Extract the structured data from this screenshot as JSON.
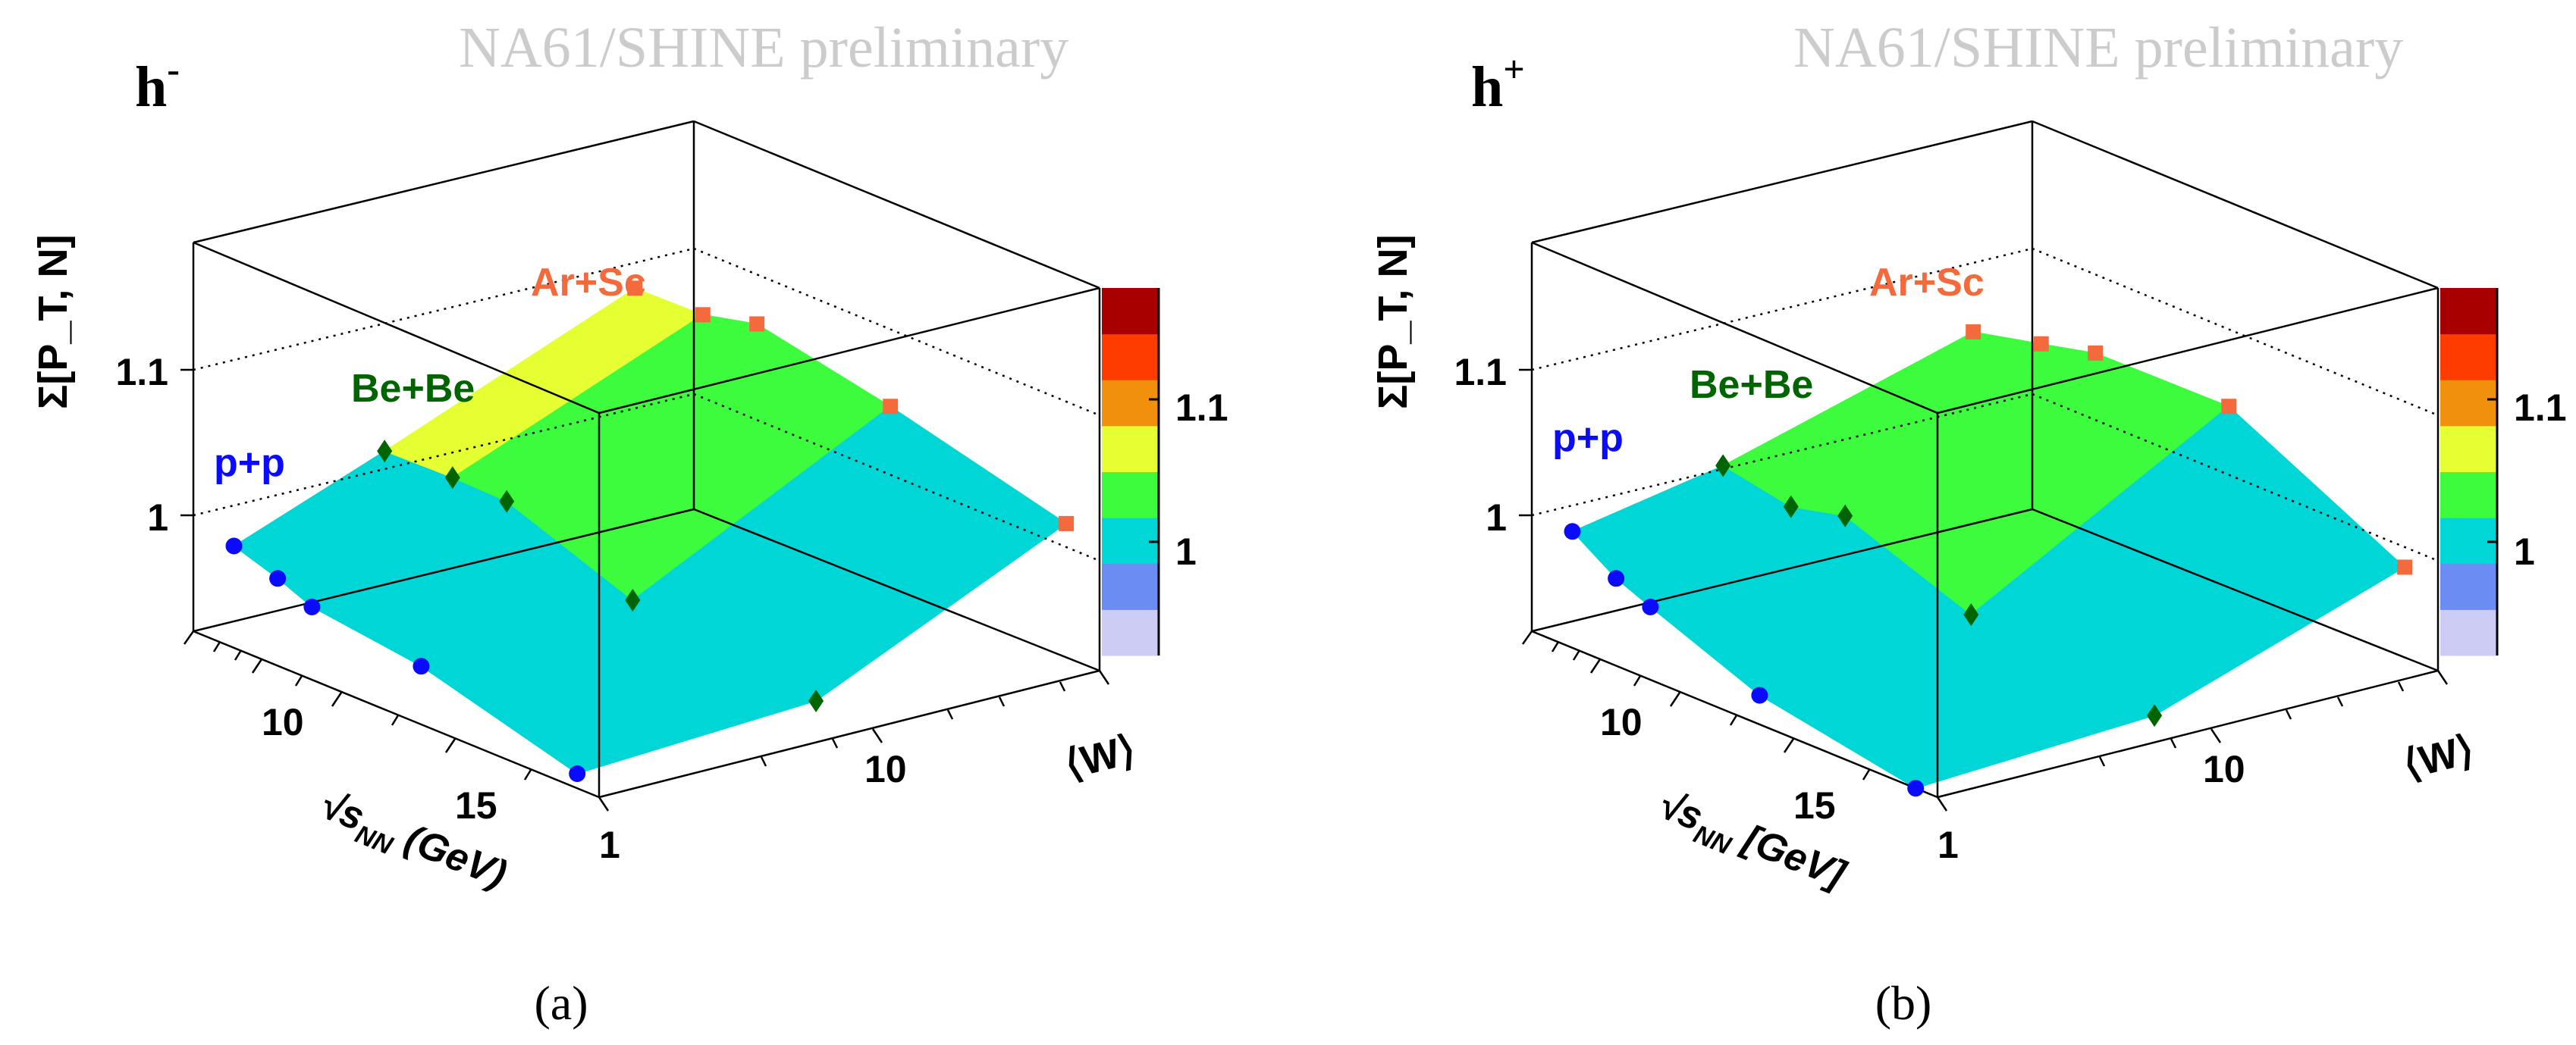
{
  "chart_data": [
    {
      "type": "surface3d",
      "panel_label": "(a)",
      "particle": "h",
      "charge": "-",
      "watermark": "NA61/SHINE preliminary",
      "zlabel": "Σ[P_T, N]",
      "xlabel_prefix": "√s",
      "xlabel_sub": "NN",
      "xlabel_suffix": " (GeV)",
      "ylabel": "⟨W⟩",
      "x_ticks": [
        "10",
        "15"
      ],
      "y_ticks": [
        "1",
        "10"
      ],
      "z_ticks": [
        "1",
        "1.1"
      ],
      "z_tick_values": [
        1.0,
        1.1
      ],
      "colorbar_ticks": [
        "1",
        "1.1"
      ],
      "colorbar_colors": [
        "#ccccf4",
        "#6b8cf2",
        "#00d6d6",
        "#3dfb3d",
        "#e5ff33",
        "#f0900c",
        "#ff3c00",
        "#a80000"
      ],
      "series": [
        {
          "name": "p+p",
          "color": "#0a0aff",
          "marker": "circle",
          "points": [
            {
              "sqrt_s": 6.3,
              "W": 1,
              "sigma": 1.02
            },
            {
              "sqrt_s": 7.7,
              "W": 1,
              "sigma": 1.01
            },
            {
              "sqrt_s": 8.8,
              "W": 1,
              "sigma": 1.0
            },
            {
              "sqrt_s": 12.3,
              "W": 1,
              "sigma": 0.99
            },
            {
              "sqrt_s": 17.3,
              "W": 1,
              "sigma": 0.96
            }
          ]
        },
        {
          "name": "Be+Be",
          "color": "#006400",
          "marker": "diamond",
          "points": [
            {
              "sqrt_s": 6.3,
              "W": 4,
              "sigma": 1.06
            },
            {
              "sqrt_s": 7.7,
              "W": 5,
              "sigma": 1.05
            },
            {
              "sqrt_s": 8.8,
              "W": 6,
              "sigma": 1.04
            },
            {
              "sqrt_s": 12.3,
              "W": 7,
              "sigma": 1.0
            },
            {
              "sqrt_s": 17.3,
              "W": 9,
              "sigma": 0.97
            }
          ]
        },
        {
          "name": "Ar+Sc",
          "color": "#f56a3c",
          "marker": "square",
          "points": [
            {
              "sqrt_s": 6.3,
              "W": 40,
              "sigma": 1.13
            },
            {
              "sqrt_s": 7.7,
              "W": 50,
              "sigma": 1.12
            },
            {
              "sqrt_s": 8.8,
              "W": 60,
              "sigma": 1.12
            },
            {
              "sqrt_s": 12.3,
              "W": 75,
              "sigma": 1.09
            },
            {
              "sqrt_s": 17.3,
              "W": 90,
              "sigma": 1.05
            }
          ]
        }
      ]
    },
    {
      "type": "surface3d",
      "panel_label": "(b)",
      "particle": "h",
      "charge": "+",
      "watermark": "NA61/SHINE preliminary",
      "zlabel": "Σ[P_T, N]",
      "xlabel_prefix": "√s",
      "xlabel_sub": "NN",
      "xlabel_suffix": " [GeV]",
      "ylabel": "⟨W⟩",
      "x_ticks": [
        "10",
        "15"
      ],
      "y_ticks": [
        "1",
        "10"
      ],
      "z_ticks": [
        "1",
        "1.1"
      ],
      "z_tick_values": [
        1.0,
        1.1
      ],
      "colorbar_ticks": [
        "1",
        "1.1"
      ],
      "colorbar_colors": [
        "#ccccf4",
        "#6b8cf2",
        "#00d6d6",
        "#3dfb3d",
        "#e5ff33",
        "#f0900c",
        "#ff3c00",
        "#a80000"
      ],
      "series": [
        {
          "name": "p+p",
          "color": "#0a0aff",
          "marker": "circle",
          "points": [
            {
              "sqrt_s": 6.3,
              "W": 1,
              "sigma": 1.03
            },
            {
              "sqrt_s": 7.7,
              "W": 1,
              "sigma": 1.01
            },
            {
              "sqrt_s": 8.8,
              "W": 1,
              "sigma": 1.0
            },
            {
              "sqrt_s": 12.3,
              "W": 1,
              "sigma": 0.97
            },
            {
              "sqrt_s": 17.3,
              "W": 1,
              "sigma": 0.95
            }
          ]
        },
        {
          "name": "Be+Be",
          "color": "#006400",
          "marker": "diamond",
          "points": [
            {
              "sqrt_s": 6.3,
              "W": 4,
              "sigma": 1.05
            },
            {
              "sqrt_s": 7.7,
              "W": 5,
              "sigma": 1.03
            },
            {
              "sqrt_s": 8.8,
              "W": 6,
              "sigma": 1.03
            },
            {
              "sqrt_s": 12.3,
              "W": 7,
              "sigma": 0.99
            },
            {
              "sqrt_s": 17.3,
              "W": 9,
              "sigma": 0.96
            }
          ]
        },
        {
          "name": "Ar+Sc",
          "color": "#f56a3c",
          "marker": "square",
          "points": [
            {
              "sqrt_s": 6.3,
              "W": 40,
              "sigma": 1.1
            },
            {
              "sqrt_s": 7.7,
              "W": 50,
              "sigma": 1.1
            },
            {
              "sqrt_s": 8.8,
              "W": 60,
              "sigma": 1.1
            },
            {
              "sqrt_s": 12.3,
              "W": 75,
              "sigma": 1.09
            },
            {
              "sqrt_s": 17.3,
              "W": 90,
              "sigma": 1.02
            }
          ]
        }
      ]
    }
  ]
}
